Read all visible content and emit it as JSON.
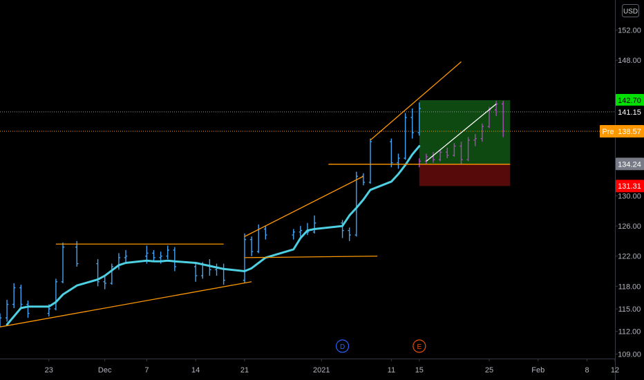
{
  "chart_data": {
    "type": "candlestick",
    "currency": "USD",
    "price_axis": {
      "ticks": [
        152.0,
        148.0,
        130.0,
        126.0,
        122.0,
        118.0,
        115.0,
        112.0,
        109.0
      ],
      "tick_labels": [
        "152.00",
        "148.00",
        "130.00",
        "126.00",
        "122.00",
        "118.00",
        "115.00",
        "112.00",
        "109.00"
      ],
      "ylim": [
        108.4,
        156.0
      ]
    },
    "time_axis": {
      "labels": [
        "23",
        "Dec",
        "7",
        "14",
        "21",
        "2021",
        "11",
        "15",
        "25",
        "Feb",
        "8",
        "12"
      ],
      "label_dates": [
        "2020-11-23",
        "2020-12-01",
        "2020-12-07",
        "2020-12-14",
        "2020-12-21",
        "2021-01-01",
        "2021-01-11",
        "2021-01-15",
        "2021-01-25",
        "2021-02-01",
        "2021-02-08",
        "2021-02-12"
      ],
      "xlim": [
        "2020-11-16",
        "2021-02-12"
      ]
    },
    "price_tags": [
      {
        "label": "",
        "value": "142.70",
        "price": 142.7,
        "bg": "#00e000",
        "fg": "#000000"
      },
      {
        "label": "",
        "value": "141.15",
        "price": 141.15,
        "bg": "#000000",
        "fg": "#ffffff"
      },
      {
        "label": "Pre",
        "value": "138.57",
        "price": 138.57,
        "bg": "#ff9800",
        "fg": "#ffffff"
      },
      {
        "label": "",
        "value": "134.24",
        "price": 134.24,
        "bg": "#787b86",
        "fg": "#ffffff"
      },
      {
        "label": "",
        "value": "131.31",
        "price": 131.31,
        "bg": "#ff0000",
        "fg": "#ffffff"
      }
    ],
    "reference_lines": [
      {
        "price": 141.15,
        "color": "#9598a1"
      },
      {
        "price": 138.57,
        "color": "#ff9800"
      }
    ],
    "moving_average": {
      "color": "#4dd0e1",
      "points": [
        [
          "2020-11-17",
          112.9
        ],
        [
          "2020-11-18",
          114.0
        ],
        [
          "2020-11-19",
          115.1
        ],
        [
          "2020-11-20",
          115.3
        ],
        [
          "2020-11-23",
          115.3
        ],
        [
          "2020-11-24",
          115.9
        ],
        [
          "2020-11-25",
          116.9
        ],
        [
          "2020-11-27",
          118.1
        ],
        [
          "2020-11-30",
          118.9
        ],
        [
          "2020-12-01",
          119.4
        ],
        [
          "2020-12-02",
          120.1
        ],
        [
          "2020-12-03",
          120.8
        ],
        [
          "2020-12-04",
          121.1
        ],
        [
          "2020-12-07",
          121.4
        ],
        [
          "2020-12-08",
          121.3
        ],
        [
          "2020-12-09",
          121.3
        ],
        [
          "2020-12-10",
          121.4
        ],
        [
          "2020-12-11",
          121.3
        ],
        [
          "2020-12-14",
          121.1
        ],
        [
          "2020-12-15",
          120.9
        ],
        [
          "2020-12-16",
          120.7
        ],
        [
          "2020-12-17",
          120.5
        ],
        [
          "2020-12-18",
          120.3
        ],
        [
          "2020-12-21",
          120.0
        ],
        [
          "2020-12-22",
          120.4
        ],
        [
          "2020-12-23",
          121.1
        ],
        [
          "2020-12-24",
          121.8
        ],
        [
          "2020-12-28",
          122.9
        ],
        [
          "2020-12-29",
          124.4
        ],
        [
          "2020-12-30",
          125.4
        ],
        [
          "2020-12-31",
          125.6
        ],
        [
          "2021-01-04",
          126.0
        ],
        [
          "2021-01-05",
          127.4
        ],
        [
          "2021-01-06",
          128.4
        ],
        [
          "2021-01-07",
          129.5
        ],
        [
          "2021-01-08",
          130.8
        ],
        [
          "2021-01-11",
          131.9
        ],
        [
          "2021-01-12",
          132.9
        ],
        [
          "2021-01-13",
          134.1
        ],
        [
          "2021-01-14",
          135.5
        ],
        [
          "2021-01-15",
          136.6
        ]
      ]
    },
    "candles": [
      [
        "2020-11-16",
        113.0,
        114.4,
        112.6,
        113.8
      ],
      [
        "2020-11-17",
        113.8,
        116.2,
        113.3,
        115.6
      ],
      [
        "2020-11-18",
        115.6,
        118.4,
        115.1,
        117.8
      ],
      [
        "2020-11-19",
        117.8,
        118.2,
        115.0,
        115.6
      ],
      [
        "2020-11-20",
        115.6,
        116.1,
        113.8,
        114.4
      ],
      [
        "2020-11-23",
        114.4,
        115.6,
        114.0,
        115.0
      ],
      [
        "2020-11-24",
        115.0,
        119.0,
        114.8,
        118.6
      ],
      [
        "2020-11-25",
        118.6,
        123.8,
        118.4,
        123.2
      ],
      [
        "2020-11-27",
        123.2,
        124.0,
        120.6,
        121.0
      ],
      [
        "2020-11-30",
        121.0,
        121.6,
        118.0,
        118.6
      ],
      [
        "2020-12-01",
        118.6,
        119.4,
        117.6,
        118.4
      ],
      [
        "2020-12-02",
        118.4,
        121.0,
        118.2,
        120.6
      ],
      [
        "2020-12-03",
        120.6,
        122.4,
        120.2,
        121.8
      ],
      [
        "2020-12-04",
        121.8,
        122.8,
        121.2,
        122.0
      ],
      [
        "2020-12-07",
        122.0,
        123.4,
        121.0,
        122.4
      ],
      [
        "2020-12-08",
        122.4,
        122.8,
        121.2,
        121.8
      ],
      [
        "2020-12-09",
        121.8,
        122.6,
        121.0,
        122.0
      ],
      [
        "2020-12-10",
        122.0,
        123.4,
        121.6,
        122.8
      ],
      [
        "2020-12-11",
        122.8,
        123.2,
        120.0,
        120.6
      ],
      [
        "2020-12-14",
        120.6,
        121.2,
        118.6,
        119.4
      ],
      [
        "2020-12-15",
        119.4,
        121.2,
        119.0,
        120.8
      ],
      [
        "2020-12-16",
        120.8,
        121.6,
        119.4,
        120.2
      ],
      [
        "2020-12-17",
        120.2,
        121.0,
        119.4,
        120.4
      ],
      [
        "2020-12-18",
        120.4,
        121.0,
        118.2,
        118.8
      ],
      [
        "2020-12-21",
        118.8,
        125.0,
        118.4,
        124.2
      ],
      [
        "2020-12-22",
        124.2,
        124.6,
        122.0,
        122.6
      ],
      [
        "2020-12-23",
        122.6,
        126.2,
        122.4,
        125.6
      ],
      [
        "2020-12-24",
        125.6,
        126.0,
        124.2,
        124.8
      ],
      [
        "2020-12-28",
        124.8,
        125.6,
        124.2,
        125.2
      ],
      [
        "2020-12-29",
        125.2,
        126.0,
        124.6,
        125.4
      ],
      [
        "2020-12-30",
        125.4,
        126.4,
        124.8,
        125.2
      ],
      [
        "2020-12-31",
        125.2,
        127.4,
        125.0,
        126.4
      ],
      [
        "2021-01-04",
        126.4,
        126.8,
        124.4,
        125.4
      ],
      [
        "2021-01-05",
        125.4,
        125.8,
        124.0,
        124.8
      ],
      [
        "2021-01-06",
        124.8,
        133.2,
        124.6,
        132.6
      ],
      [
        "2021-01-07",
        132.6,
        133.0,
        131.4,
        131.8
      ],
      [
        "2021-01-08",
        131.8,
        137.6,
        131.6,
        137.2
      ],
      [
        "2021-01-11",
        137.2,
        137.6,
        133.8,
        134.4
      ],
      [
        "2021-01-12",
        134.4,
        135.6,
        133.6,
        135.0
      ],
      [
        "2021-01-13",
        135.0,
        141.0,
        134.8,
        140.4
      ],
      [
        "2021-01-14",
        140.4,
        141.6,
        137.6,
        138.4
      ],
      [
        "2021-01-15",
        138.4,
        142.4,
        138.0,
        141.6
      ]
    ],
    "projection_candles": [
      [
        "2021-01-15",
        134.2,
        135.0,
        133.8,
        134.6
      ],
      [
        "2021-01-16",
        134.6,
        135.6,
        134.2,
        135.2
      ],
      [
        "2021-01-17",
        135.2,
        135.8,
        134.4,
        134.8
      ],
      [
        "2021-01-18",
        134.8,
        136.2,
        134.6,
        135.8
      ],
      [
        "2021-01-19",
        135.8,
        136.4,
        135.0,
        135.4
      ],
      [
        "2021-01-20",
        135.4,
        137.0,
        135.2,
        136.6
      ],
      [
        "2021-01-21",
        136.6,
        137.2,
        134.2,
        134.8
      ],
      [
        "2021-01-22",
        134.8,
        137.8,
        134.6,
        137.4
      ],
      [
        "2021-01-23",
        137.4,
        138.2,
        136.6,
        137.6
      ],
      [
        "2021-01-24",
        137.6,
        139.6,
        137.2,
        139.2
      ],
      [
        "2021-01-25",
        139.2,
        141.8,
        139.0,
        141.4
      ],
      [
        "2021-01-26",
        141.4,
        142.6,
        140.6,
        142.2
      ],
      [
        "2021-01-27",
        142.2,
        142.6,
        137.8,
        138.6
      ]
    ],
    "position": {
      "start": "2021-01-15",
      "end": "2021-01-28",
      "entry": 134.24,
      "target": 142.7,
      "stop": 131.31,
      "profit_color": "#0e4d12",
      "loss_color": "#5c0b0b"
    },
    "trend_lines": [
      {
        "from": [
          "2020-11-16",
          112.6
        ],
        "to": [
          "2020-12-22",
          118.6
        ],
        "color": "#ff9800"
      },
      {
        "from": [
          "2020-11-24",
          123.6
        ],
        "to": [
          "2020-12-18",
          123.6
        ],
        "color": "#ff9800"
      },
      {
        "from": [
          "2020-12-21",
          124.6
        ],
        "to": [
          "2021-01-07",
          132.6
        ],
        "color": "#ff9800"
      },
      {
        "from": [
          "2020-12-21",
          121.8
        ],
        "to": [
          "2021-01-09",
          122.0
        ],
        "color": "#ff9800"
      },
      {
        "from": [
          "2021-01-08",
          137.4
        ],
        "to": [
          "2021-01-21",
          147.8
        ],
        "color": "#ff9800"
      },
      {
        "from": [
          "2021-01-02",
          134.2
        ],
        "to": [
          "2021-01-28",
          134.2
        ],
        "color": "#ff9800"
      },
      {
        "from": [
          "2021-01-16",
          134.6
        ],
        "to": [
          "2021-01-26",
          142.2
        ],
        "color": "#ffffff"
      }
    ],
    "events": [
      {
        "label": "D",
        "date": "2021-01-04",
        "color": "#2962ff"
      },
      {
        "label": "E",
        "date": "2021-01-15",
        "color": "#e65100"
      }
    ]
  }
}
